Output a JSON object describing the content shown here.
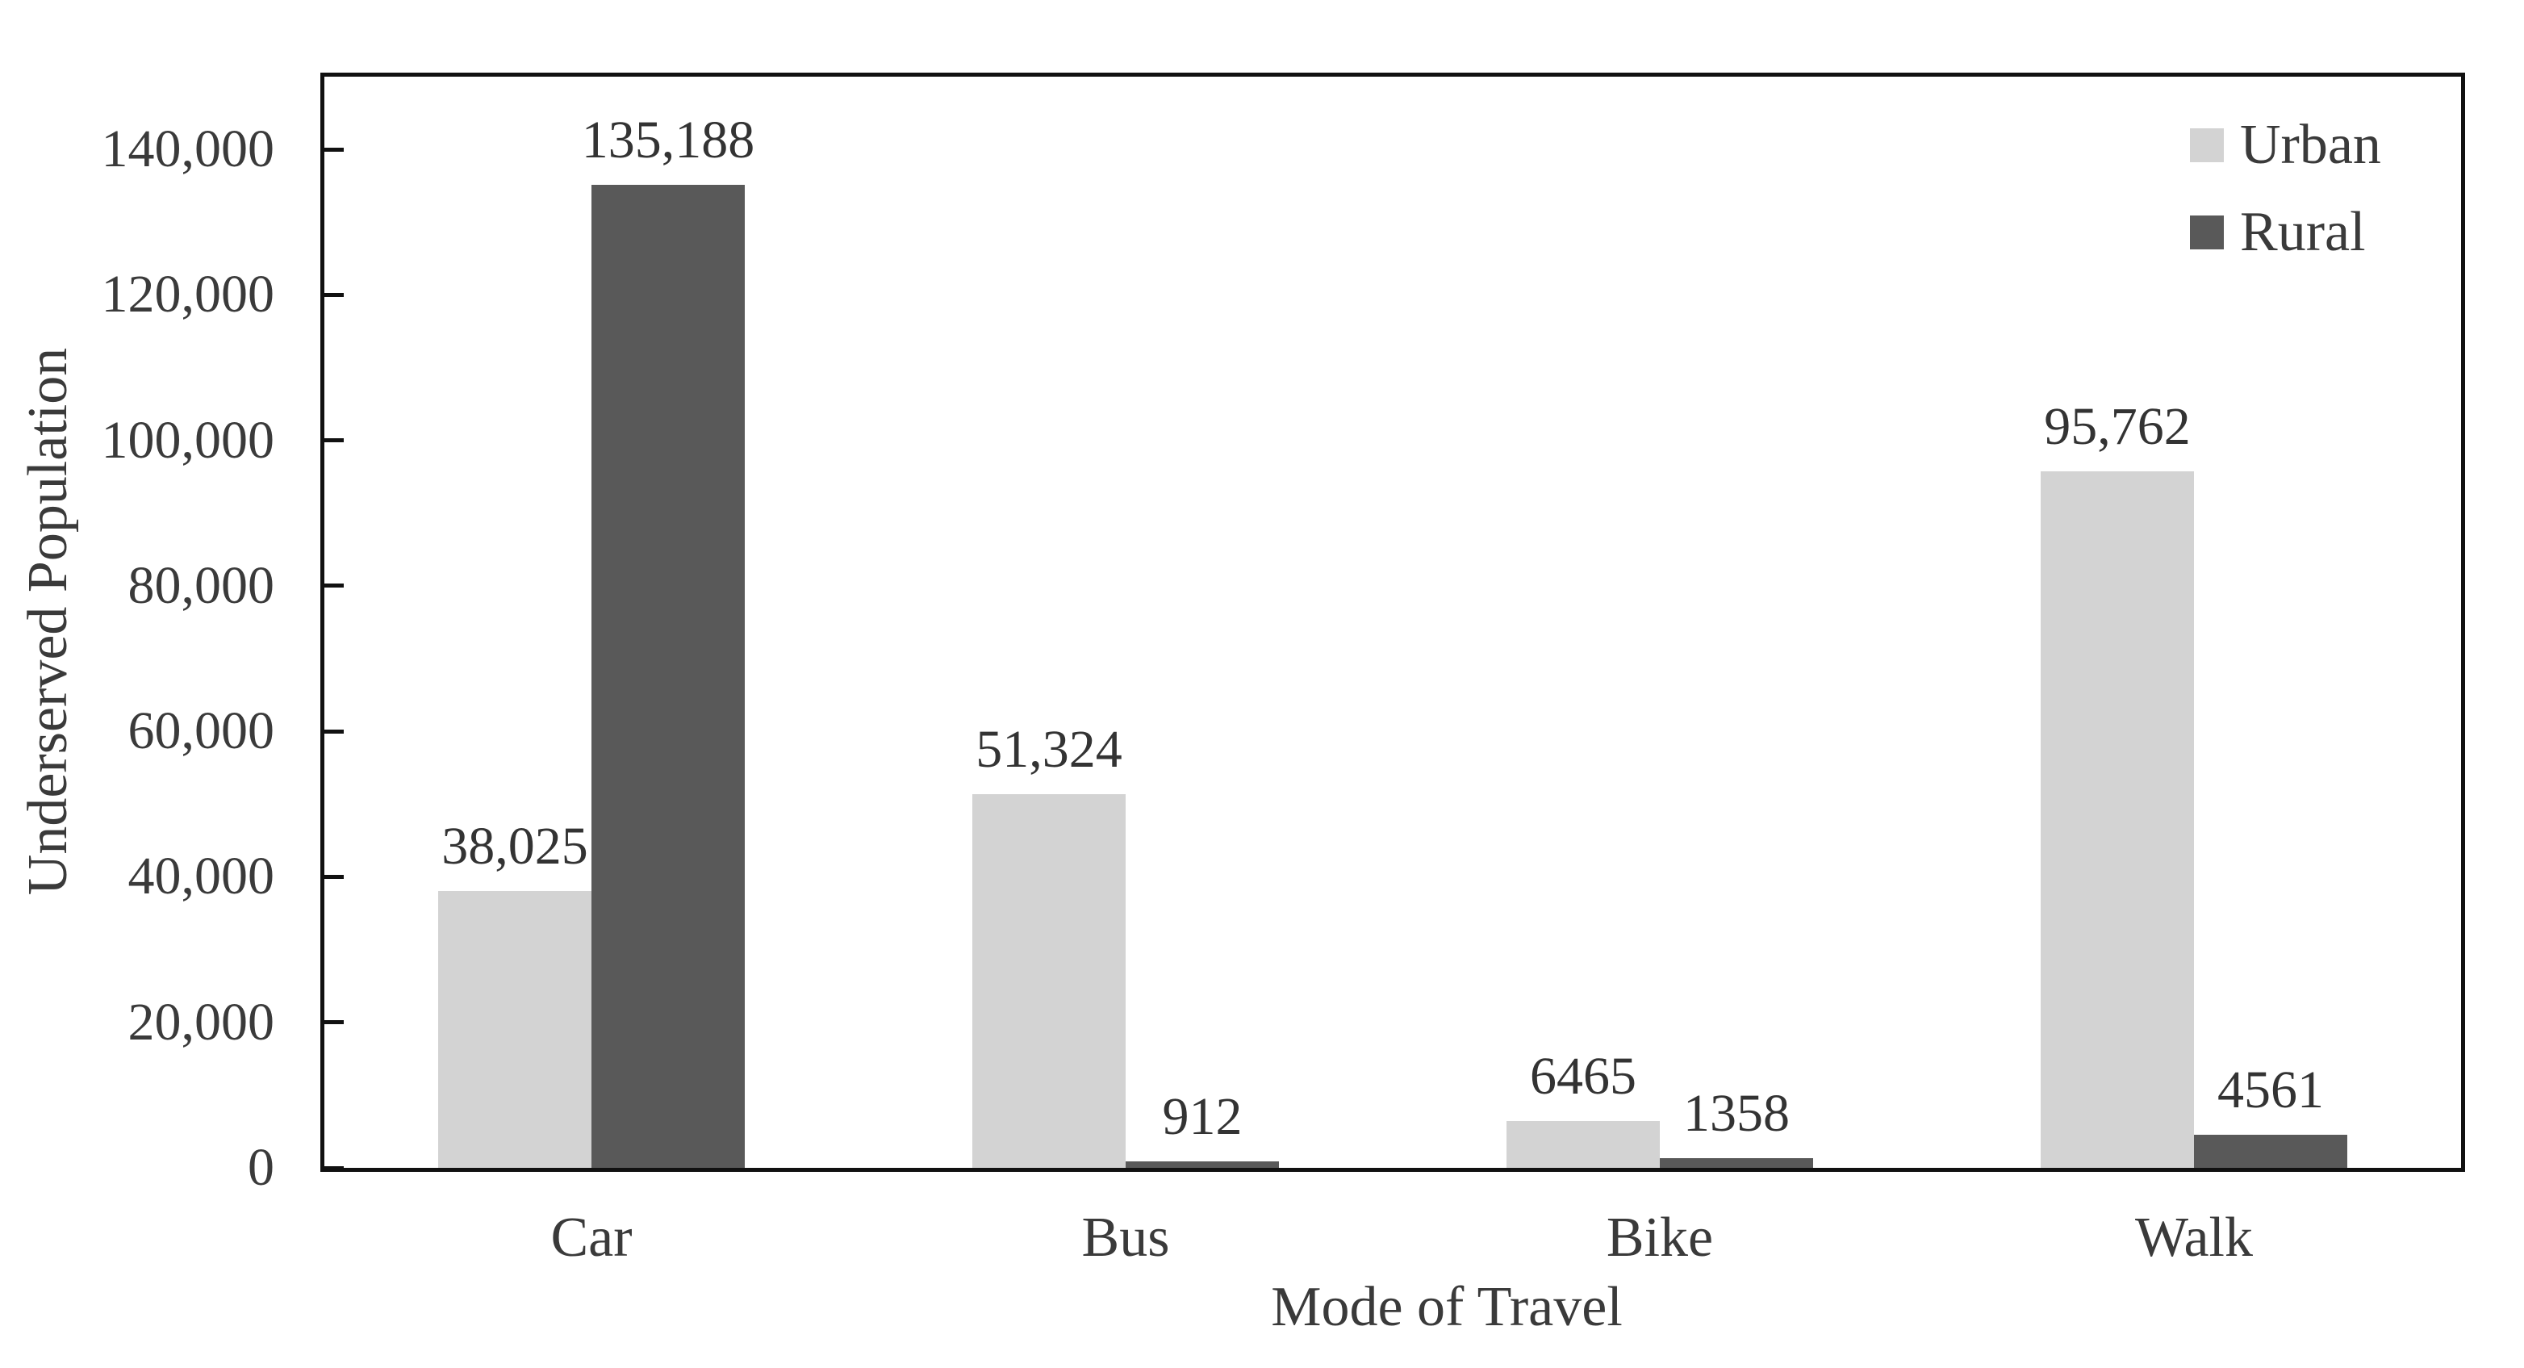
{
  "chart_data": {
    "type": "bar",
    "title": "",
    "categories": [
      "Car",
      "Bus",
      "Bike",
      "Walk"
    ],
    "series": [
      {
        "name": "Urban",
        "color": "#d3d3d3",
        "values": [
          38025,
          51324,
          6465,
          95762
        ],
        "labels": [
          "38,025",
          "51,324",
          "6465",
          "95,762"
        ]
      },
      {
        "name": "Rural",
        "color": "#595959",
        "values": [
          135188,
          912,
          1358,
          4561
        ],
        "labels": [
          "135,188",
          "912",
          "1358",
          "4561"
        ]
      }
    ],
    "xlabel": "Mode of Travel",
    "ylabel": "Underserved Population",
    "ylim": [
      0,
      150000
    ],
    "yticks": {
      "values": [
        0,
        20000,
        40000,
        60000,
        80000,
        100000,
        120000,
        140000
      ],
      "labels": [
        "0",
        "20,000",
        "40,000",
        "60,000",
        "80,000",
        "100,000",
        "120,000",
        "140,000"
      ]
    },
    "grid": false,
    "legend_position": "top-right",
    "colors": {
      "axis_line": "#111111",
      "text": "#3a3a3a",
      "background": "#ffffff"
    }
  }
}
